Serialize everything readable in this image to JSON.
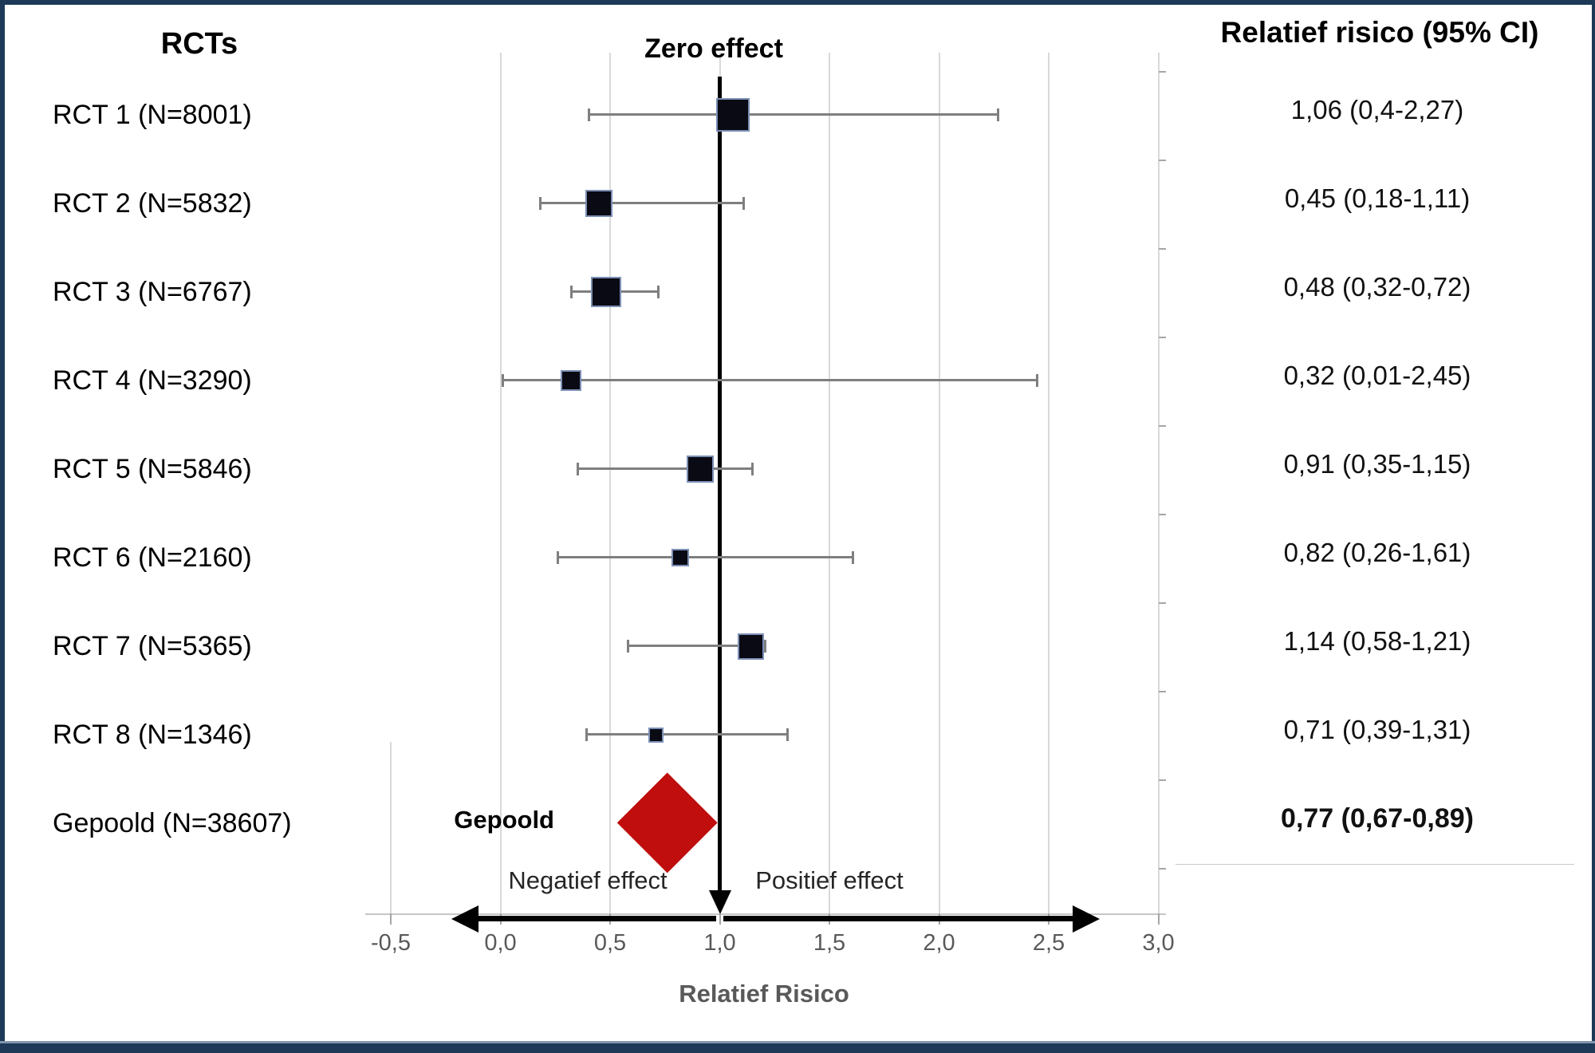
{
  "colors": {
    "border_navy": "#1e3857",
    "border_navy_light": "#8195ad",
    "diamond_red": "#c00d0d",
    "marker_black": "#0a0a14",
    "marker_edge": "#7c8fb5",
    "whisker_gray": "#7f7f7f",
    "grid_gray": "#d9d9d9",
    "axis_gray": "#c6c6c6",
    "text_gray": "#595959"
  },
  "left_column": {
    "header": "RCTs"
  },
  "right_column": {
    "header": "Relatief risico (95% CI)"
  },
  "chart_data": {
    "type": "scatter",
    "subtype": "forest-plot",
    "zero_effect_label": "Zero effect",
    "xlabel": "Relatief Risico",
    "x_ticks": [
      "-0,5",
      "0,0",
      "0,5",
      "1,0",
      "1,5",
      "2,0",
      "2,5",
      "3,0"
    ],
    "x_tick_values": [
      -0.5,
      0.0,
      0.5,
      1.0,
      1.5,
      2.0,
      2.5,
      3.0
    ],
    "xlim": [
      -0.5,
      3.0
    ],
    "zero_effect_x": 1.0,
    "grid": true,
    "arrow_labels": {
      "left": "Negatief effect",
      "right": "Positief effect"
    },
    "pooled_marker_label": "Gepoold",
    "studies": [
      {
        "label": "RCT 1 (N=8001)",
        "n": 8001,
        "rr": 1.06,
        "ci_low": 0.4,
        "ci_high": 2.27,
        "ci_text": "1,06 (0,4-2,27)"
      },
      {
        "label": "RCT 2 (N=5832)",
        "n": 5832,
        "rr": 0.45,
        "ci_low": 0.18,
        "ci_high": 1.11,
        "ci_text": "0,45 (0,18-1,11)"
      },
      {
        "label": "RCT 3 (N=6767)",
        "n": 6767,
        "rr": 0.48,
        "ci_low": 0.32,
        "ci_high": 0.72,
        "ci_text": "0,48 (0,32-0,72)"
      },
      {
        "label": "RCT 4 (N=3290)",
        "n": 3290,
        "rr": 0.32,
        "ci_low": 0.01,
        "ci_high": 2.45,
        "ci_text": "0,32 (0,01-2,45)"
      },
      {
        "label": "RCT 5 (N=5846)",
        "n": 5846,
        "rr": 0.91,
        "ci_low": 0.35,
        "ci_high": 1.15,
        "ci_text": "0,91 (0,35-1,15)"
      },
      {
        "label": "RCT 6 (N=2160)",
        "n": 2160,
        "rr": 0.82,
        "ci_low": 0.26,
        "ci_high": 1.61,
        "ci_text": "0,82 (0,26-1,61)"
      },
      {
        "label": "RCT 7 (N=5365)",
        "n": 5365,
        "rr": 1.14,
        "ci_low": 0.58,
        "ci_high": 1.21,
        "ci_text": "1,14 (0,58-1,21)"
      },
      {
        "label": "RCT 8 (N=1346)",
        "n": 1346,
        "rr": 0.71,
        "ci_low": 0.39,
        "ci_high": 1.31,
        "ci_text": "0,71 (0,39-1,31)"
      }
    ],
    "pooled": {
      "label": "Gepoold (N=38607)",
      "n": 38607,
      "rr": 0.77,
      "ci_low": 0.67,
      "ci_high": 0.89,
      "ci_text": "0,77 (0,67-0,89)",
      "diamond_draw_span": [
        0.53,
        0.99
      ]
    }
  }
}
